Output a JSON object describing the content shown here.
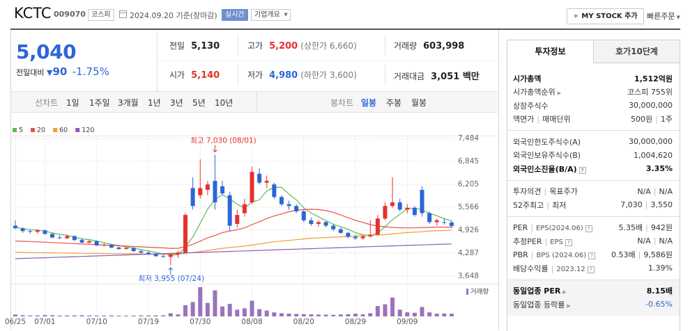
{
  "header": {
    "name": "KCTC",
    "code": "009070",
    "market": "코스피",
    "date": "2024.09.20 기준(장마감)",
    "realtime": "실시간",
    "company_info": "기업개요",
    "mystock": "MY STOCK 추가",
    "quick_order": "빠른주문"
  },
  "price": {
    "current": "5,040",
    "change_label": "전일대비",
    "change": "90",
    "change_rate": "-1.75%",
    "direction": "down"
  },
  "quote": {
    "rows": [
      [
        {
          "label": "전일",
          "value": "5,130"
        },
        {
          "label": "고가",
          "value": "5,200",
          "note": "(상한가 6,660)",
          "tone": "up"
        },
        {
          "label": "거래량",
          "value": "603,998"
        }
      ],
      [
        {
          "label": "시가",
          "value": "5,140",
          "tone": "up"
        },
        {
          "label": "저가",
          "value": "4,980",
          "note": "(하한가 3,600)",
          "tone": "down"
        },
        {
          "label": "거래대금",
          "value": "3,051 백만"
        }
      ]
    ]
  },
  "chart_tabs": {
    "line_label": "선차트",
    "line_periods": [
      "1일",
      "1주일",
      "3개월",
      "1년",
      "3년",
      "5년",
      "10년"
    ],
    "candle_label": "봉차트",
    "candle_periods": [
      "일봉",
      "주봉",
      "월봉"
    ],
    "active_candle_period": 0
  },
  "chart_data": {
    "type": "candlestick",
    "categories": [
      "06/25",
      null,
      null,
      null,
      "07/01",
      null,
      null,
      null,
      null,
      null,
      null,
      "07/10",
      null,
      null,
      null,
      null,
      null,
      null,
      "07/19",
      null,
      null,
      null,
      null,
      null,
      null,
      "07/30",
      null,
      null,
      null,
      null,
      null,
      null,
      "08/08",
      null,
      null,
      null,
      null,
      null,
      null,
      "08/20",
      null,
      null,
      null,
      null,
      null,
      null,
      "08/29",
      null,
      null,
      null,
      null,
      null,
      null,
      "09/09",
      null,
      null,
      null,
      null,
      null,
      null
    ],
    "open": [
      5050,
      4980,
      4900,
      4880,
      4920,
      4820,
      4720,
      4700,
      4760,
      4650,
      4580,
      4620,
      4500,
      4520,
      4440,
      4400,
      4430,
      4340,
      4300,
      4260,
      4200,
      4180,
      4250,
      4300,
      6100,
      5900,
      6050,
      6300,
      6150,
      5900,
      5100,
      5400,
      5700,
      6500,
      6250,
      6200,
      5850,
      5650,
      5600,
      5450,
      5200,
      5100,
      5150,
      5050,
      4950,
      4850,
      4740,
      4700,
      4750,
      4800,
      5250,
      5600,
      5700,
      5500,
      5550,
      6050,
      5400,
      5150,
      5150,
      5140
    ],
    "high": [
      5200,
      5000,
      4950,
      4950,
      4950,
      4850,
      4780,
      4800,
      4780,
      4700,
      4650,
      4640,
      4560,
      4540,
      4480,
      4460,
      4450,
      4380,
      4340,
      4290,
      4250,
      4260,
      4350,
      5400,
      6400,
      6900,
      6300,
      7030,
      6300,
      6000,
      5500,
      5800,
      6700,
      6650,
      6450,
      6250,
      5900,
      5750,
      5650,
      5500,
      5280,
      5200,
      5180,
      5100,
      5000,
      4880,
      4800,
      4780,
      5200,
      5350,
      5700,
      6400,
      5800,
      5650,
      5600,
      6150,
      5450,
      5250,
      5250,
      5200
    ],
    "low": [
      4950,
      4850,
      4820,
      4830,
      4800,
      4700,
      4680,
      4680,
      4620,
      4560,
      4550,
      4480,
      4460,
      4420,
      4380,
      4380,
      4320,
      4280,
      4240,
      4180,
      4150,
      3955,
      4150,
      4280,
      5500,
      5800,
      5900,
      5500,
      5900,
      4900,
      5000,
      5300,
      5650,
      6200,
      6100,
      5800,
      5600,
      5500,
      5400,
      5150,
      5050,
      5020,
      5000,
      4900,
      4820,
      4700,
      4650,
      4660,
      4720,
      4780,
      5200,
      5550,
      5450,
      5400,
      5300,
      5300,
      5100,
      5050,
      5080,
      4980
    ],
    "close": [
      4980,
      4900,
      4880,
      4920,
      4820,
      4720,
      4700,
      4760,
      4650,
      4580,
      4620,
      4500,
      4520,
      4440,
      4400,
      4430,
      4340,
      4300,
      4260,
      4200,
      4180,
      4250,
      4300,
      5350,
      5600,
      6100,
      6200,
      5700,
      5950,
      5050,
      5350,
      5650,
      6550,
      6250,
      6300,
      5850,
      5650,
      5600,
      5450,
      5200,
      5100,
      5150,
      5050,
      4950,
      4850,
      4740,
      4700,
      4750,
      4800,
      5250,
      5600,
      5700,
      5500,
      5550,
      5350,
      5400,
      5150,
      5200,
      5130,
      5040
    ],
    "up_color": "#e5322d",
    "down_color": "#2d65d8",
    "ma_series": [
      {
        "name": "5",
        "color": "#5cb85c",
        "values": [
          5000,
          4970,
          4940,
          4930,
          4900,
          4848,
          4808,
          4784,
          4730,
          4682,
          4662,
          4622,
          4574,
          4532,
          4496,
          4458,
          4426,
          4382,
          4346,
          4306,
          4256,
          4238,
          4238,
          4456,
          4736,
          5120,
          5510,
          5790,
          5910,
          5800,
          5650,
          5540,
          5710,
          5770,
          6020,
          6120,
          6120,
          5930,
          5770,
          5550,
          5400,
          5300,
          5190,
          5090,
          5020,
          4948,
          4858,
          4798,
          4768,
          4848,
          5020,
          5220,
          5370,
          5520,
          5540,
          5500,
          5390,
          5330,
          5246,
          5184
        ]
      },
      {
        "name": "20",
        "color": "#e8504a",
        "values": [
          4620,
          4615,
          4610,
          4600,
          4590,
          4580,
          4570,
          4560,
          4550,
          4540,
          4530,
          4520,
          4510,
          4500,
          4490,
          4480,
          4470,
          4460,
          4450,
          4440,
          4430,
          4420,
          4420,
          4470,
          4530,
          4620,
          4710,
          4780,
          4860,
          4900,
          4940,
          4990,
          5080,
          5160,
          5250,
          5320,
          5380,
          5440,
          5480,
          5500,
          5510,
          5500,
          5470,
          5420,
          5350,
          5270,
          5200,
          5140,
          5080,
          5040,
          5020,
          5000,
          4990,
          4990,
          4990,
          5000,
          5000,
          5010,
          5010,
          5010
        ]
      },
      {
        "name": "60",
        "color": "#f39c2f",
        "values": [
          4310,
          4305,
          4300,
          4298,
          4295,
          4292,
          4290,
          4288,
          4285,
          4282,
          4280,
          4278,
          4275,
          4272,
          4270,
          4268,
          4265,
          4262,
          4260,
          4258,
          4255,
          4252,
          4260,
          4280,
          4300,
          4330,
          4360,
          4390,
          4420,
          4440,
          4460,
          4480,
          4510,
          4540,
          4570,
          4600,
          4620,
          4640,
          4660,
          4680,
          4700,
          4710,
          4720,
          4730,
          4740,
          4750,
          4760,
          4770,
          4780,
          4790,
          4800,
          4820,
          4840,
          4860,
          4870,
          4880,
          4900,
          4910,
          4920,
          4930
        ]
      },
      {
        "name": "120",
        "color": "#8a5cb8",
        "values": [
          4130,
          4137,
          4144,
          4151,
          4158,
          4165,
          4172,
          4179,
          4186,
          4193,
          4200,
          4207,
          4214,
          4221,
          4228,
          4235,
          4242,
          4249,
          4256,
          4263,
          4270,
          4277,
          4284,
          4291,
          4298,
          4305,
          4312,
          4319,
          4326,
          4333,
          4340,
          4347,
          4354,
          4361,
          4368,
          4375,
          4382,
          4389,
          4396,
          4403,
          4410,
          4417,
          4424,
          4431,
          4438,
          4445,
          4452,
          4459,
          4466,
          4473,
          4480,
          4487,
          4494,
          4501,
          4508,
          4515,
          4522,
          4529,
          4536,
          4543
        ]
      }
    ],
    "volume": {
      "name": "거래량",
      "color": "#9a72bd",
      "values": [
        400000,
        250000,
        200000,
        220000,
        300000,
        260000,
        200000,
        210000,
        230000,
        250000,
        200000,
        180000,
        190000,
        210000,
        170000,
        160000,
        180000,
        200000,
        190000,
        220000,
        250000,
        700000,
        450000,
        2500000,
        3200000,
        6500000,
        3000000,
        5800000,
        2200000,
        2800000,
        1500000,
        1800000,
        3500000,
        1600000,
        1300000,
        900000,
        700000,
        600000,
        550000,
        500000,
        450000,
        400000,
        380000,
        350000,
        420000,
        500000,
        600000,
        450000,
        700000,
        2300000,
        2700000,
        4200000,
        1500000,
        900000,
        800000,
        2100000,
        900000,
        600000,
        650000,
        603998
      ]
    },
    "ylim": [
      3490,
      7660
    ],
    "yticks": [
      {
        "value": 7484,
        "label": "7,484"
      },
      {
        "value": 6845,
        "label": "6,845"
      },
      {
        "value": 6205,
        "label": "6,205"
      },
      {
        "value": 5566,
        "label": "5,566"
      },
      {
        "value": 4926,
        "label": "4,926"
      },
      {
        "value": 4287,
        "label": "4,287"
      },
      {
        "value": 3648,
        "label": "3,648"
      }
    ],
    "grid": true,
    "high_label": "최고 7,030 (08/01)",
    "low_label": "최저 3,955 (07/24)"
  },
  "invest_info": {
    "tabs": [
      "투자정보",
      "호가10단계"
    ],
    "active_tab": 0,
    "groups": [
      {
        "rows": [
          {
            "label": [
              "시가총액"
            ],
            "values": [
              "1,512억원"
            ],
            "strong": true
          },
          {
            "label": [
              "시가총액순위"
            ],
            "values": [
              "코스피 755위"
            ],
            "link": true
          },
          {
            "label": [
              "상장주식수"
            ],
            "values": [
              "30,000,000"
            ]
          },
          {
            "label": [
              "액면가",
              "매매단위"
            ],
            "values": [
              "500원",
              "1주"
            ]
          }
        ]
      },
      {
        "rows": [
          {
            "label": [
              "외국인한도주식수(A)"
            ],
            "values": [
              "30,000,000"
            ]
          },
          {
            "label": [
              "외국인보유주식수(B)"
            ],
            "values": [
              "1,004,620"
            ]
          },
          {
            "label": [
              "외국인소진율(B/A)"
            ],
            "values": [
              "3.35%"
            ],
            "strong": true,
            "help": true
          }
        ]
      },
      {
        "rows": [
          {
            "label": [
              "투자의견",
              "목표주가"
            ],
            "values": [
              "N/A",
              "N/A"
            ]
          },
          {
            "label": [
              "52주최고",
              "최저"
            ],
            "values": [
              "7,030",
              "3,550"
            ]
          }
        ]
      },
      {
        "rows": [
          {
            "label": [
              "PER",
              "EPS(2024.06)"
            ],
            "values": [
              "5.35배",
              "942원"
            ],
            "help": true
          },
          {
            "label": [
              "추정PER",
              "EPS"
            ],
            "values": [
              "N/A",
              "N/A"
            ],
            "help": true
          },
          {
            "label": [
              "PBR",
              "BPS (2024.06)"
            ],
            "values": [
              "0.53배",
              "9,586원"
            ],
            "help": true
          },
          {
            "label": [
              "배당수익률",
              "2023.12"
            ],
            "values": [
              "1.39%"
            ],
            "help": true
          }
        ]
      },
      {
        "shaded": true,
        "rows": [
          {
            "label": [
              "동일업종 PER"
            ],
            "values": [
              "8.15배"
            ],
            "strong": true,
            "link": true
          },
          {
            "label": [
              "동일업종 등락률"
            ],
            "values": [
              "-0.65%"
            ],
            "link": true,
            "down": true
          }
        ]
      }
    ]
  }
}
